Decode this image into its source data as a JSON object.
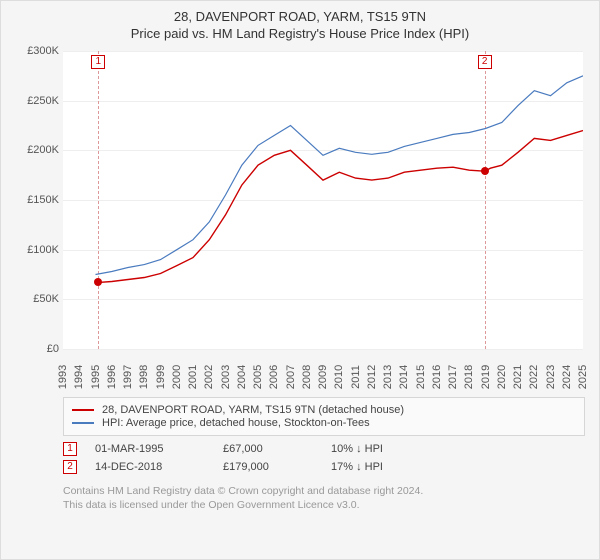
{
  "title": "28, DAVENPORT ROAD, YARM, TS15 9TN",
  "subtitle": "Price paid vs. HM Land Registry's House Price Index (HPI)",
  "chart": {
    "type": "line",
    "x": {
      "min": 1993,
      "max": 2025,
      "ticks": [
        1993,
        1994,
        1995,
        1996,
        1997,
        1998,
        1999,
        2000,
        2001,
        2002,
        2003,
        2004,
        2005,
        2006,
        2007,
        2008,
        2009,
        2010,
        2011,
        2012,
        2013,
        2014,
        2015,
        2016,
        2017,
        2018,
        2019,
        2020,
        2021,
        2022,
        2023,
        2024,
        2025
      ]
    },
    "y": {
      "min": 0,
      "max": 300000,
      "ticks": [
        0,
        50000,
        100000,
        150000,
        200000,
        250000,
        300000
      ],
      "tick_labels": [
        "£0",
        "£50K",
        "£100K",
        "£150K",
        "£200K",
        "£250K",
        "£300K"
      ]
    },
    "background_color": "#ffffff",
    "grid_color": "#eeeeee",
    "series": [
      {
        "name": "28, DAVENPORT ROAD, YARM, TS15 9TN (detached house)",
        "color": "#cc0000",
        "width": 1.4,
        "points": [
          [
            1995.2,
            67000
          ],
          [
            1996,
            68000
          ],
          [
            1997,
            70000
          ],
          [
            1998,
            72000
          ],
          [
            1999,
            76000
          ],
          [
            2000,
            84000
          ],
          [
            2001,
            92000
          ],
          [
            2002,
            110000
          ],
          [
            2003,
            135000
          ],
          [
            2004,
            165000
          ],
          [
            2005,
            185000
          ],
          [
            2006,
            195000
          ],
          [
            2007,
            200000
          ],
          [
            2008,
            185000
          ],
          [
            2009,
            170000
          ],
          [
            2010,
            178000
          ],
          [
            2011,
            172000
          ],
          [
            2012,
            170000
          ],
          [
            2013,
            172000
          ],
          [
            2014,
            178000
          ],
          [
            2015,
            180000
          ],
          [
            2016,
            182000
          ],
          [
            2017,
            183000
          ],
          [
            2018,
            180000
          ],
          [
            2018.95,
            179000
          ],
          [
            2019.3,
            182000
          ],
          [
            2020,
            185000
          ],
          [
            2021,
            198000
          ],
          [
            2022,
            212000
          ],
          [
            2023,
            210000
          ],
          [
            2024,
            215000
          ],
          [
            2025,
            220000
          ]
        ]
      },
      {
        "name": "HPI: Average price, detached house, Stockton-on-Tees",
        "color": "#4a7bbf",
        "width": 1.2,
        "points": [
          [
            1995,
            75000
          ],
          [
            1996,
            78000
          ],
          [
            1997,
            82000
          ],
          [
            1998,
            85000
          ],
          [
            1999,
            90000
          ],
          [
            2000,
            100000
          ],
          [
            2001,
            110000
          ],
          [
            2002,
            128000
          ],
          [
            2003,
            155000
          ],
          [
            2004,
            185000
          ],
          [
            2005,
            205000
          ],
          [
            2006,
            215000
          ],
          [
            2007,
            225000
          ],
          [
            2008,
            210000
          ],
          [
            2009,
            195000
          ],
          [
            2010,
            202000
          ],
          [
            2011,
            198000
          ],
          [
            2012,
            196000
          ],
          [
            2013,
            198000
          ],
          [
            2014,
            204000
          ],
          [
            2015,
            208000
          ],
          [
            2016,
            212000
          ],
          [
            2017,
            216000
          ],
          [
            2018,
            218000
          ],
          [
            2019,
            222000
          ],
          [
            2020,
            228000
          ],
          [
            2021,
            245000
          ],
          [
            2022,
            260000
          ],
          [
            2023,
            255000
          ],
          [
            2024,
            268000
          ],
          [
            2025,
            275000
          ]
        ]
      }
    ],
    "markers": [
      {
        "n": "1",
        "x": 1995.17,
        "y": 72000
      },
      {
        "n": "2",
        "x": 2018.95,
        "y": 181000
      }
    ],
    "price_points": [
      {
        "x": 1995.17,
        "y": 67000,
        "color": "#cc0000"
      },
      {
        "x": 2018.95,
        "y": 179000,
        "color": "#cc0000"
      }
    ]
  },
  "legend": {
    "rows": [
      {
        "color": "#cc0000",
        "label": "28, DAVENPORT ROAD, YARM, TS15 9TN (detached house)"
      },
      {
        "color": "#4a7bbf",
        "label": "HPI: Average price, detached house, Stockton-on-Tees"
      }
    ]
  },
  "transactions": [
    {
      "n": "1",
      "date": "01-MAR-1995",
      "price": "£67,000",
      "delta": "10% ↓ HPI"
    },
    {
      "n": "2",
      "date": "14-DEC-2018",
      "price": "£179,000",
      "delta": "17% ↓ HPI"
    }
  ],
  "copyright": {
    "line1": "Contains HM Land Registry data © Crown copyright and database right 2024.",
    "line2": "This data is licensed under the Open Government Licence v3.0."
  }
}
